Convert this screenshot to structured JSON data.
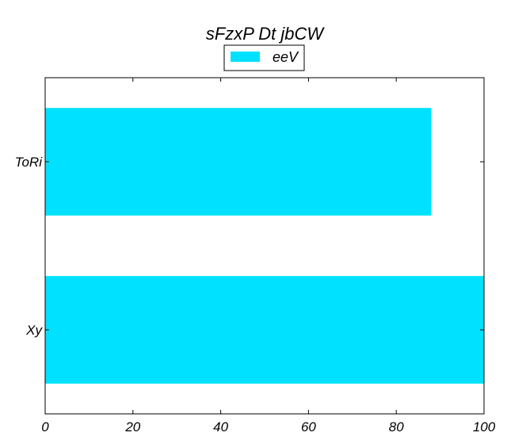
{
  "chart_data": {
    "type": "bar",
    "orientation": "horizontal",
    "title": "sFzxP Dt jbCW",
    "categories": [
      "ToRi",
      "Xy"
    ],
    "series": [
      {
        "name": "eeV",
        "values": [
          88,
          100
        ],
        "color": "#00e1ff"
      }
    ],
    "xlim": [
      0,
      100
    ],
    "xticks": [
      0,
      20,
      40,
      60,
      80,
      100
    ],
    "xlabel": "",
    "ylabel": "",
    "grid": false,
    "legend": {
      "placement": "top-center"
    }
  }
}
